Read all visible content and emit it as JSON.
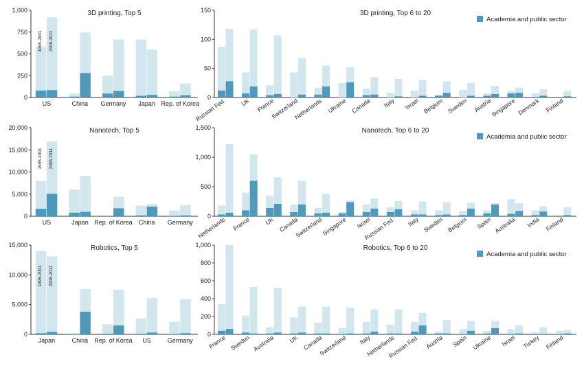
{
  "colors": {
    "total": "#d2e6ee",
    "academia": "#4f99bb",
    "axis": "#333333",
    "text": "#222222"
  },
  "chart_data": [
    {
      "type": "bar",
      "title": "3D printing, Top 5",
      "ylim": [
        0,
        1000
      ],
      "yticks": [
        "0",
        "250",
        "500",
        "750",
        "1,000"
      ],
      "period_labels": [
        "1995-2001",
        "2005-2011"
      ],
      "categories": [
        "US",
        "China",
        "Germany",
        "Japan",
        "Rep. of Korea"
      ],
      "series": [
        {
          "period": "1995-2001",
          "total": [
            580,
            45,
            250,
            665,
            70
          ],
          "academia": [
            80,
            10,
            45,
            20,
            10
          ]
        },
        {
          "period": "2005-2011",
          "total": [
            920,
            745,
            665,
            550,
            160
          ],
          "academia": [
            85,
            280,
            75,
            30,
            25
          ]
        }
      ]
    },
    {
      "type": "bar",
      "title": "3D printing, Top 6 to 20",
      "legend": "Academia and public sector",
      "ylim": [
        0,
        150
      ],
      "yticks": [
        "0",
        "50",
        "100",
        "150"
      ],
      "categories": [
        "Russian Fed.",
        "UK",
        "France",
        "Switzerland",
        "Netherlands",
        "Ukraine",
        "Canada",
        "Italy",
        "Israel",
        "Belgium",
        "Sweden",
        "Austria",
        "Singapore",
        "Denmark",
        "Finland"
      ],
      "series": [
        {
          "period": "1995-2001",
          "total": [
            87,
            43,
            21,
            43,
            17,
            25,
            15,
            8,
            12,
            5,
            13,
            7,
            11,
            7,
            0
          ],
          "academia": [
            12,
            7,
            4,
            0,
            5,
            0,
            4,
            0,
            0,
            3,
            0,
            3,
            7,
            1,
            0
          ]
        },
        {
          "period": "2005-2011",
          "total": [
            118,
            117,
            107,
            68,
            55,
            52,
            35,
            32,
            30,
            28,
            25,
            20,
            17,
            14,
            11
          ],
          "academia": [
            28,
            19,
            6,
            5,
            19,
            26,
            5,
            2,
            3,
            8,
            3,
            6,
            8,
            3,
            2
          ]
        }
      ]
    },
    {
      "type": "bar",
      "title": "Nanotech, Top 5",
      "ylim": [
        0,
        20000
      ],
      "yticks": [
        "0",
        "5,000",
        "10,000",
        "15,000",
        "20,000"
      ],
      "period_labels": [
        "1995-2001",
        "2005-2011"
      ],
      "categories": [
        "US",
        "Japan",
        "Rep. of Korea",
        "China",
        "Germany"
      ],
      "series": [
        {
          "period": "1995-2001",
          "total": [
            8000,
            6000,
            150,
            2400,
            1300
          ],
          "academia": [
            1700,
            800,
            100,
            200,
            100
          ]
        },
        {
          "period": "2005-2011",
          "total": [
            16900,
            9100,
            4400,
            2800,
            2500
          ],
          "academia": [
            5100,
            1000,
            1800,
            2200,
            200
          ]
        }
      ]
    },
    {
      "type": "bar",
      "title": "Nanotech, Top 6 to 20",
      "legend": "Academia and public sector",
      "ylim": [
        0,
        1500
      ],
      "yticks": [
        "0",
        "500",
        "1,000",
        "1,500"
      ],
      "categories": [
        "Netherlands",
        "France",
        "UK",
        "Canada",
        "Switzerland",
        "Singapore",
        "Israel",
        "Russian Fed.",
        "Italy",
        "Sweden",
        "Belgium",
        "Spain",
        "Australia",
        "India",
        "Finland"
      ],
      "series": [
        {
          "period": "1995-2001",
          "total": [
            180,
            400,
            350,
            200,
            140,
            70,
            200,
            150,
            100,
            100,
            90,
            100,
            290,
            100,
            0
          ],
          "academia": [
            30,
            100,
            140,
            70,
            50,
            50,
            70,
            70,
            30,
            20,
            20,
            50,
            40,
            20,
            0
          ]
        },
        {
          "period": "2005-2011",
          "total": [
            1220,
            1050,
            660,
            600,
            380,
            270,
            300,
            260,
            250,
            240,
            230,
            220,
            220,
            170,
            150
          ],
          "academia": [
            60,
            600,
            210,
            200,
            60,
            240,
            130,
            120,
            30,
            30,
            130,
            200,
            90,
            80,
            20
          ]
        }
      ]
    },
    {
      "type": "bar",
      "title": "Robotics, Top 5",
      "ylim": [
        0,
        15000
      ],
      "yticks": [
        "0",
        "5,000",
        "10,000",
        "15,000"
      ],
      "period_labels": [
        "1995-2001",
        "2005-2011"
      ],
      "categories": [
        "Japan",
        "China",
        "Rep. of Korea",
        "US",
        "Germany"
      ],
      "series": [
        {
          "period": "1995-2001",
          "total": [
            14000,
            200,
            1700,
            2700,
            2100
          ],
          "academia": [
            200,
            50,
            100,
            100,
            50
          ]
        },
        {
          "period": "2005-2011",
          "total": [
            13100,
            7600,
            7500,
            6100,
            5900
          ],
          "academia": [
            400,
            3800,
            1500,
            300,
            200
          ]
        }
      ]
    },
    {
      "type": "bar",
      "title": "Robotics, Top 6 to 20",
      "legend": "Academia and public sector",
      "ylim": [
        0,
        1000
      ],
      "yticks": [
        "0",
        "200",
        "400",
        "600",
        "800",
        "1,000"
      ],
      "categories": [
        "France",
        "Sweden",
        "Australia",
        "UK",
        "Canada",
        "Switzerland",
        "Italy",
        "Netherlands",
        "Russian Fed.",
        "Austria",
        "Spain",
        "Ukraine",
        "Israel",
        "Turkey",
        "Finland"
      ],
      "series": [
        {
          "period": "1995-2001",
          "total": [
            340,
            210,
            80,
            190,
            130,
            70,
            140,
            110,
            140,
            30,
            60,
            40,
            60,
            20,
            40
          ],
          "academia": [
            40,
            20,
            10,
            10,
            10,
            5,
            10,
            10,
            30,
            10,
            5,
            10,
            5,
            5,
            5
          ]
        },
        {
          "period": "2005-2011",
          "total": [
            1000,
            530,
            520,
            310,
            310,
            300,
            280,
            280,
            240,
            160,
            150,
            150,
            100,
            80,
            50
          ],
          "academia": [
            60,
            10,
            20,
            20,
            10,
            10,
            30,
            10,
            100,
            10,
            40,
            70,
            10,
            5,
            10
          ]
        }
      ]
    }
  ]
}
